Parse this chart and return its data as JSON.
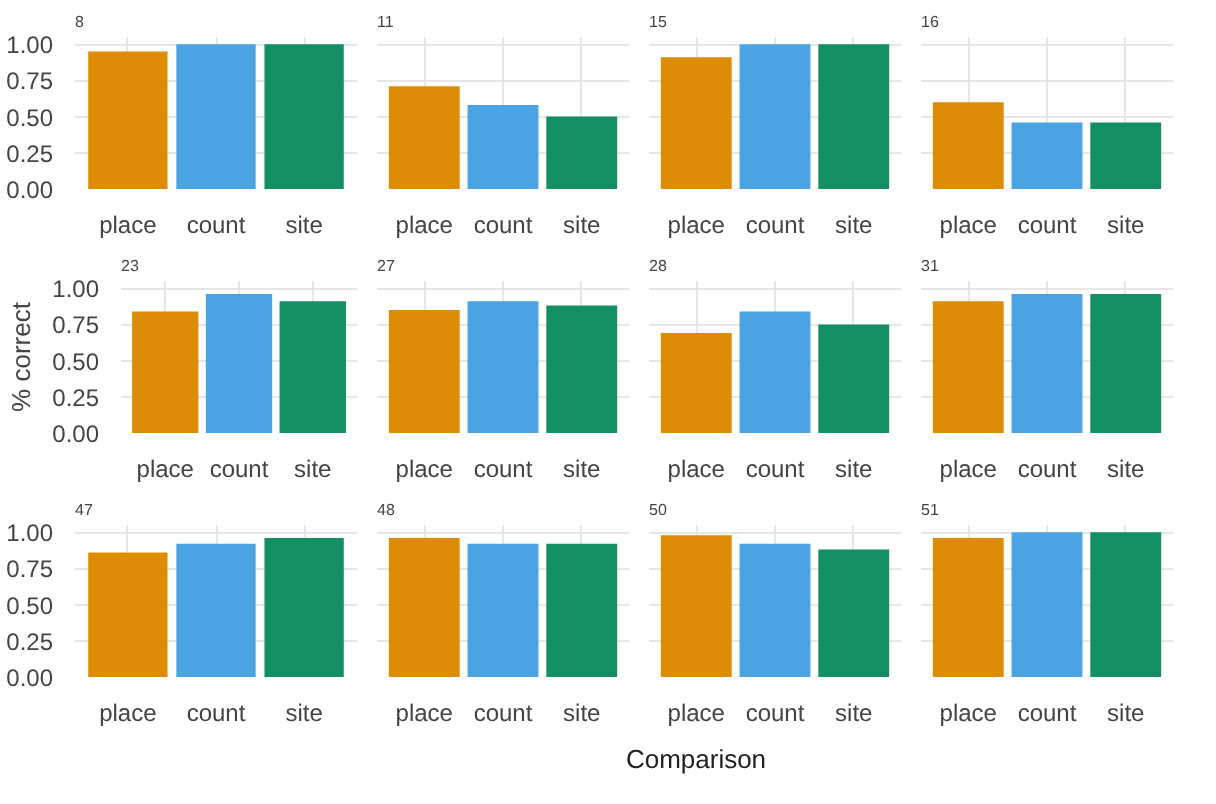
{
  "chart_data": [
    {
      "type": "bar",
      "title": "8",
      "categories": [
        "place",
        "count",
        "site"
      ],
      "values": [
        0.95,
        1.0,
        1.0
      ],
      "colors": [
        "#de8c07",
        "#4aa3e2",
        "#148f62"
      ],
      "ylim": [
        0,
        1.05
      ],
      "yticks": [
        {
          "value": 0,
          "label": "0.00"
        },
        {
          "value": 0.25,
          "label": "0.25"
        },
        {
          "value": 0.5,
          "label": "0.50"
        },
        {
          "value": 0.75,
          "label": "0.75"
        },
        {
          "value": 1,
          "label": "1.00"
        }
      ],
      "grid": true
    },
    {
      "type": "bar",
      "title": "11",
      "categories": [
        "place",
        "count",
        "site"
      ],
      "values": [
        0.71,
        0.58,
        0.5
      ],
      "colors": [
        "#de8c07",
        "#4aa3e2",
        "#148f62"
      ],
      "ylim": [
        0,
        1.05
      ],
      "yticks": [
        {
          "value": 0,
          "label": null
        },
        {
          "value": 0.25,
          "label": null
        },
        {
          "value": 0.5,
          "label": null
        },
        {
          "value": 0.75,
          "label": null
        },
        {
          "value": 1,
          "label": null
        }
      ],
      "grid": true,
      "tick_labels": "x"
    },
    {
      "type": "bar",
      "title": "15",
      "categories": [
        "place",
        "count",
        "site"
      ],
      "values": [
        0.91,
        1.0,
        1.0
      ],
      "colors": [
        "#de8c07",
        "#4aa3e2",
        "#148f62"
      ],
      "ylim": [
        0,
        1.05
      ],
      "yticks": [
        {
          "value": 0,
          "label": null
        },
        {
          "value": 0.25,
          "label": null
        },
        {
          "value": 0.5,
          "label": null
        },
        {
          "value": 0.75,
          "label": null
        },
        {
          "value": 1,
          "label": null
        }
      ],
      "grid": true,
      "tick_labels": "x"
    },
    {
      "type": "bar",
      "title": "16",
      "categories": [
        "place",
        "count",
        "site"
      ],
      "values": [
        0.6,
        0.46,
        0.46
      ],
      "colors": [
        "#de8c07",
        "#4aa3e2",
        "#148f62"
      ],
      "ylim": [
        0,
        1.05
      ],
      "yticks": [
        {
          "value": 0,
          "label": null
        },
        {
          "value": 0.25,
          "label": null
        },
        {
          "value": 0.5,
          "label": null
        },
        {
          "value": 0.75,
          "label": null
        },
        {
          "value": 1,
          "label": null
        }
      ],
      "grid": true,
      "tick_labels": "x"
    },
    {
      "type": "bar",
      "title": "23",
      "ylabel": "% correct",
      "categories": [
        "place",
        "count",
        "site"
      ],
      "values": [
        0.84,
        0.96,
        0.91
      ],
      "colors": [
        "#de8c07",
        "#4aa3e2",
        "#148f62"
      ],
      "ylim": [
        0,
        1.05
      ],
      "yticks": [
        {
          "value": 0,
          "label": "0.00"
        },
        {
          "value": 0.25,
          "label": "0.25"
        },
        {
          "value": 0.5,
          "label": "0.50"
        },
        {
          "value": 0.75,
          "label": "0.75"
        },
        {
          "value": 1,
          "label": "1.00"
        }
      ],
      "grid": true
    },
    {
      "type": "bar",
      "title": "27",
      "categories": [
        "place",
        "count",
        "site"
      ],
      "values": [
        0.85,
        0.91,
        0.88
      ],
      "colors": [
        "#de8c07",
        "#4aa3e2",
        "#148f62"
      ],
      "ylim": [
        0,
        1.05
      ],
      "yticks": [
        {
          "value": 0,
          "label": null
        },
        {
          "value": 0.25,
          "label": null
        },
        {
          "value": 0.5,
          "label": null
        },
        {
          "value": 0.75,
          "label": null
        },
        {
          "value": 1,
          "label": null
        }
      ],
      "grid": true,
      "tick_labels": "x"
    },
    {
      "type": "bar",
      "title": "28",
      "categories": [
        "place",
        "count",
        "site"
      ],
      "values": [
        0.69,
        0.84,
        0.75
      ],
      "colors": [
        "#de8c07",
        "#4aa3e2",
        "#148f62"
      ],
      "ylim": [
        0,
        1.05
      ],
      "yticks": [
        {
          "value": 0,
          "label": null
        },
        {
          "value": 0.25,
          "label": null
        },
        {
          "value": 0.5,
          "label": null
        },
        {
          "value": 0.75,
          "label": null
        },
        {
          "value": 1,
          "label": null
        }
      ],
      "grid": true,
      "tick_labels": "x"
    },
    {
      "type": "bar",
      "title": "31",
      "categories": [
        "place",
        "count",
        "site"
      ],
      "values": [
        0.91,
        0.96,
        0.96
      ],
      "colors": [
        "#de8c07",
        "#4aa3e2",
        "#148f62"
      ],
      "ylim": [
        0,
        1.05
      ],
      "yticks": [
        {
          "value": 0,
          "label": null
        },
        {
          "value": 0.25,
          "label": null
        },
        {
          "value": 0.5,
          "label": null
        },
        {
          "value": 0.75,
          "label": null
        },
        {
          "value": 1,
          "label": null
        }
      ],
      "grid": true,
      "tick_labels": "x"
    },
    {
      "type": "bar",
      "title": "47",
      "categories": [
        "place",
        "count",
        "site"
      ],
      "values": [
        0.86,
        0.92,
        0.96
      ],
      "colors": [
        "#de8c07",
        "#4aa3e2",
        "#148f62"
      ],
      "ylim": [
        0,
        1.05
      ],
      "yticks": [
        {
          "value": 0,
          "label": "0.00"
        },
        {
          "value": 0.25,
          "label": "0.25"
        },
        {
          "value": 0.5,
          "label": "0.50"
        },
        {
          "value": 0.75,
          "label": "0.75"
        },
        {
          "value": 1,
          "label": "1.00"
        }
      ],
      "grid": true
    },
    {
      "type": "bar",
      "title": "48",
      "xlabel": "Comparison",
      "categories": [
        "place",
        "count",
        "site"
      ],
      "values": [
        0.96,
        0.92,
        0.92
      ],
      "colors": [
        "#de8c07",
        "#4aa3e2",
        "#148f62"
      ],
      "ylim": [
        0,
        1.05
      ],
      "yticks": [
        {
          "value": 0,
          "label": null
        },
        {
          "value": 0.25,
          "label": null
        },
        {
          "value": 0.5,
          "label": null
        },
        {
          "value": 0.75,
          "label": null
        },
        {
          "value": 1,
          "label": null
        }
      ],
      "grid": true,
      "tick_labels": "x"
    },
    {
      "type": "bar",
      "title": "50",
      "categories": [
        "place",
        "count",
        "site"
      ],
      "values": [
        0.98,
        0.92,
        0.88
      ],
      "colors": [
        "#de8c07",
        "#4aa3e2",
        "#148f62"
      ],
      "ylim": [
        0,
        1.05
      ],
      "yticks": [
        {
          "value": 0,
          "label": null
        },
        {
          "value": 0.25,
          "label": null
        },
        {
          "value": 0.5,
          "label": null
        },
        {
          "value": 0.75,
          "label": null
        },
        {
          "value": 1,
          "label": null
        }
      ],
      "grid": true,
      "tick_labels": "x"
    },
    {
      "type": "bar",
      "title": "51",
      "categories": [
        "place",
        "count",
        "site"
      ],
      "values": [
        0.96,
        1.0,
        1.0
      ],
      "colors": [
        "#de8c07",
        "#4aa3e2",
        "#148f62"
      ],
      "ylim": [
        0,
        1.05
      ],
      "yticks": [
        {
          "value": 0,
          "label": null
        },
        {
          "value": 0.25,
          "label": null
        },
        {
          "value": 0.5,
          "label": null
        },
        {
          "value": 0.75,
          "label": null
        },
        {
          "value": 1,
          "label": null
        }
      ],
      "grid": true,
      "tick_labels": "x"
    }
  ]
}
